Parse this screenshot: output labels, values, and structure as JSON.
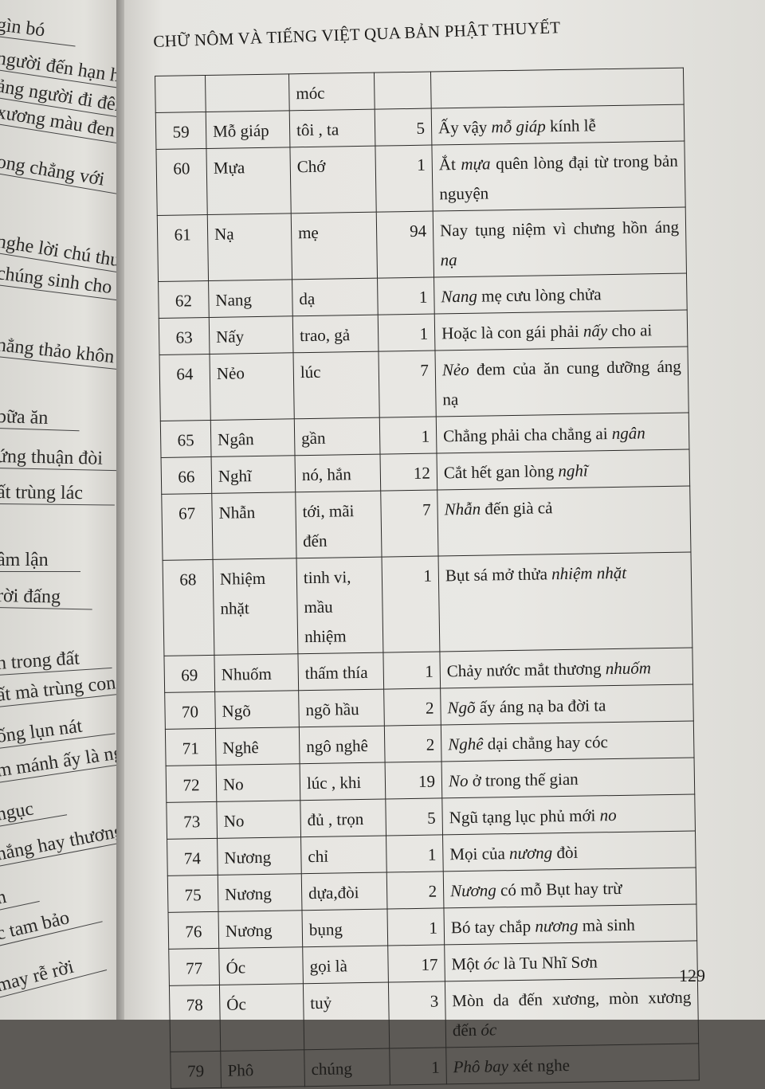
{
  "left_page": {
    "lines": [
      "gìn bó",
      "người đến hạn hỏi",
      "ảng người đi đêm",
      "xương màu đen hòu",
      "ong chẳng với",
      "nghe lời chú thuyết",
      "chúng sinh cho nên",
      "nẳng thảo khôn bày",
      "bữa ăn",
      "ứng thuận đòi",
      "ất trùng lác",
      "âm lận",
      "rời đấng",
      "n trong đất",
      "ất mà trùng con sâu",
      "ống lụn nát",
      "m mánh ấy là người",
      "ngục",
      "nắng hay thương khó",
      "n",
      "c tam bảo",
      "may rễ rời"
    ]
  },
  "header": {
    "running_title": "CHỮ NÔM VÀ TIẾNG VIỆT QUA BẢN PHẬT THUYẾT"
  },
  "table": {
    "rows": [
      {
        "no": "",
        "word": "",
        "meaning": "móc",
        "count": "",
        "example": []
      },
      {
        "no": "59",
        "word": "Mỗ giáp",
        "meaning": "tôi , ta",
        "count": "5",
        "example": [
          {
            "t": "Ấy vậy "
          },
          {
            "t": "mỗ giáp",
            "i": true
          },
          {
            "t": " kính lễ"
          }
        ]
      },
      {
        "no": "60",
        "word": "Mựa",
        "meaning": "Chớ",
        "count": "1",
        "example": [
          {
            "t": "Ắt "
          },
          {
            "t": "mựa",
            "i": true
          },
          {
            "t": " quên lòng đại từ trong bản nguyện"
          }
        ]
      },
      {
        "no": "61",
        "word": "Nạ",
        "meaning": "mẹ",
        "count": "94",
        "example": [
          {
            "t": "Nay tụng niệm vì chưng hồn áng "
          },
          {
            "t": "nạ",
            "i": true
          }
        ]
      },
      {
        "no": "62",
        "word": "Nang",
        "meaning": "dạ",
        "count": "1",
        "example": [
          {
            "t": "Nang",
            "i": true
          },
          {
            "t": " mẹ cưu lòng chửa"
          }
        ]
      },
      {
        "no": "63",
        "word": "Nấy",
        "meaning": "trao, gả",
        "count": "1",
        "example": [
          {
            "t": "Hoặc là con gái phải "
          },
          {
            "t": "nấy",
            "i": true
          },
          {
            "t": " cho ai"
          }
        ]
      },
      {
        "no": "64",
        "word": "Nẻo",
        "meaning": "lúc",
        "count": "7",
        "example": [
          {
            "t": "Nẻo",
            "i": true
          },
          {
            "t": " đem của ăn cung dưỡng áng nạ"
          }
        ]
      },
      {
        "no": "65",
        "word": "Ngân",
        "meaning": "gần",
        "count": "1",
        "example": [
          {
            "t": "Chẳng phải cha chẳng ai "
          },
          {
            "t": "ngân",
            "i": true
          }
        ]
      },
      {
        "no": "66",
        "word": "Nghĩ",
        "meaning": "nó, hắn",
        "count": "12",
        "example": [
          {
            "t": "Cắt hết gan lòng "
          },
          {
            "t": "nghĩ",
            "i": true
          }
        ]
      },
      {
        "no": "67",
        "word": "Nhẫn",
        "meaning": "tới, mãi đến",
        "count": "7",
        "example": [
          {
            "t": "Nhẫn",
            "i": true
          },
          {
            "t": " đến già cả"
          }
        ]
      },
      {
        "no": "68",
        "word": "Nhiệm nhặt",
        "meaning": "tinh vi, mầu nhiệm",
        "count": "1",
        "example": [
          {
            "t": "Bụt sá mở thửa "
          },
          {
            "t": "nhiệm nhặt",
            "i": true
          }
        ]
      },
      {
        "no": "69",
        "word": "Nhuốm",
        "meaning": "thấm thía",
        "count": "1",
        "example": [
          {
            "t": "Chảy nước mắt thương "
          },
          {
            "t": "nhuốm",
            "i": true
          }
        ]
      },
      {
        "no": "70",
        "word": "Ngõ",
        "meaning": "ngõ hầu",
        "count": "2",
        "example": [
          {
            "t": "Ngõ",
            "i": true
          },
          {
            "t": " ấy áng nạ ba đời ta"
          }
        ]
      },
      {
        "no": "71",
        "word": "Nghê",
        "meaning": "ngô nghê",
        "count": "2",
        "example": [
          {
            "t": "Nghê",
            "i": true
          },
          {
            "t": " dại chẳng hay cóc"
          }
        ]
      },
      {
        "no": "72",
        "word": "No",
        "meaning": "lúc , khi",
        "count": "19",
        "example": [
          {
            "t": "No",
            "i": true
          },
          {
            "t": " ở trong thế gian"
          }
        ]
      },
      {
        "no": "73",
        "word": "No",
        "meaning": "đủ , trọn",
        "count": "5",
        "example": [
          {
            "t": "Ngũ tạng lục phủ mới "
          },
          {
            "t": "no",
            "i": true
          }
        ]
      },
      {
        "no": "74",
        "word": "Nương",
        "meaning": "chỉ",
        "count": "1",
        "example": [
          {
            "t": "Mọi của "
          },
          {
            "t": "nương",
            "i": true
          },
          {
            "t": " đòi"
          }
        ]
      },
      {
        "no": "75",
        "word": "Nương",
        "meaning": "dựa,đòi",
        "count": "2",
        "example": [
          {
            "t": "Nương",
            "i": true
          },
          {
            "t": " có mỗ Bụt hay trừ"
          }
        ]
      },
      {
        "no": "76",
        "word": "Nương",
        "meaning": "bụng",
        "count": "1",
        "example": [
          {
            "t": "Bó tay chắp "
          },
          {
            "t": "nương",
            "i": true
          },
          {
            "t": " mà sinh"
          }
        ]
      },
      {
        "no": "77",
        "word": "Óc",
        "meaning": "gọi là",
        "count": "17",
        "example": [
          {
            "t": "Một "
          },
          {
            "t": "óc",
            "i": true
          },
          {
            "t": " là Tu Nhĩ Sơn"
          }
        ]
      },
      {
        "no": "78",
        "word": "Óc",
        "meaning": "tuỷ",
        "count": "3",
        "example": [
          {
            "t": "Mòn da đến xương, mòn xương đến "
          },
          {
            "t": "óc",
            "i": true
          }
        ]
      },
      {
        "no": "79",
        "word": "Phô",
        "meaning": "chúng",
        "count": "1",
        "example": [
          {
            "t": "Phô bay",
            "i": true
          },
          {
            "t": " xét nghe"
          }
        ]
      }
    ]
  },
  "footer": {
    "page_number": "129"
  }
}
